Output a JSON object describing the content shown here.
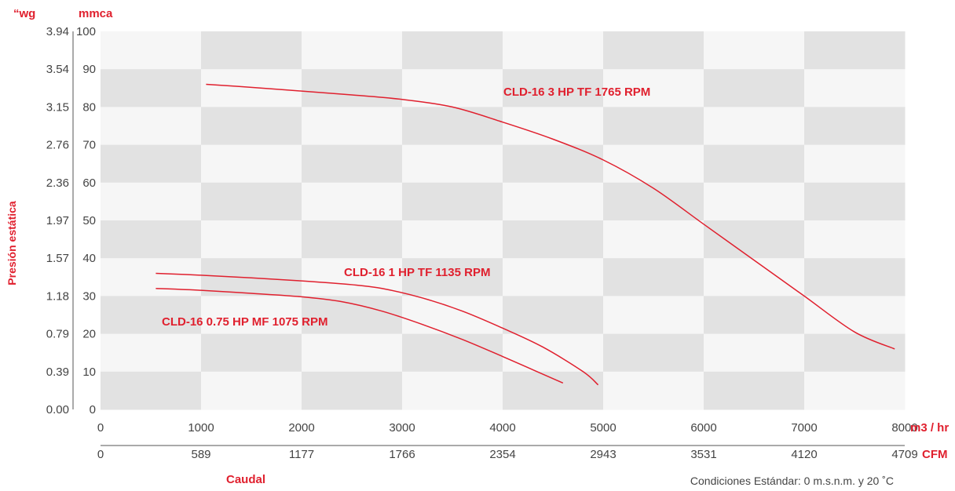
{
  "colors": {
    "accent": "#e0202e",
    "band_dark": "#e2e2e2",
    "band_light": "#f6f6f6",
    "text": "#444444"
  },
  "chart_data": {
    "type": "line",
    "xlim": [
      0,
      8000
    ],
    "ylim": [
      0,
      100
    ],
    "grid": true,
    "x_ticks_m3hr": [
      "0",
      "1000",
      "2000",
      "3000",
      "4000",
      "5000",
      "6000",
      "7000",
      "8000"
    ],
    "x_ticks_cfm": [
      "0",
      "589",
      "1177",
      "1766",
      "2354",
      "2943",
      "3531",
      "4120",
      "4709"
    ],
    "y_ticks_mmca": [
      "0",
      "10",
      "20",
      "30",
      "40",
      "50",
      "60",
      "70",
      "80",
      "90",
      "100"
    ],
    "y_ticks_wg": [
      "0.00",
      "0.39",
      "0.79",
      "1.18",
      "1.57",
      "1.97",
      "2.36",
      "2.76",
      "3.15",
      "3.54",
      "3.94"
    ],
    "x_unit_primary": "m3 / hr",
    "x_unit_secondary": "CFM",
    "y_unit_primary": "mmca",
    "y_unit_secondary": "“wg",
    "xlabel": "Caudal",
    "ylabel": "Presión estática",
    "note": "Condiciones Estándar: 0 m.s.n.m. y 20 ˚C",
    "series": [
      {
        "name": "CLD-16 3 HP TF 1765 RPM",
        "x": [
          1050,
          1500,
          2000,
          2500,
          3000,
          3500,
          4000,
          4500,
          5000,
          5500,
          6000,
          6500,
          7000,
          7500,
          7900
        ],
        "y": [
          86,
          85.2,
          84.2,
          83.2,
          82,
          80,
          76,
          71.5,
          66,
          58.5,
          49,
          39.5,
          30,
          20.5,
          16
        ]
      },
      {
        "name": "CLD-16 1 HP TF 1135 RPM",
        "x": [
          550,
          1000,
          1500,
          2000,
          2500,
          2800,
          3200,
          3600,
          4000,
          4400,
          4800,
          4950
        ],
        "y": [
          36,
          35.5,
          34.8,
          34,
          33,
          32,
          29.5,
          26,
          21.5,
          16.5,
          10,
          6.5
        ]
      },
      {
        "name": "CLD-16 0.75 HP MF 1075 RPM",
        "x": [
          550,
          1000,
          1500,
          2000,
          2400,
          2800,
          3200,
          3600,
          4000,
          4300,
          4600
        ],
        "y": [
          32,
          31.5,
          30.7,
          29.8,
          28.5,
          26,
          22.5,
          18.5,
          14,
          10.5,
          7
        ]
      }
    ]
  }
}
